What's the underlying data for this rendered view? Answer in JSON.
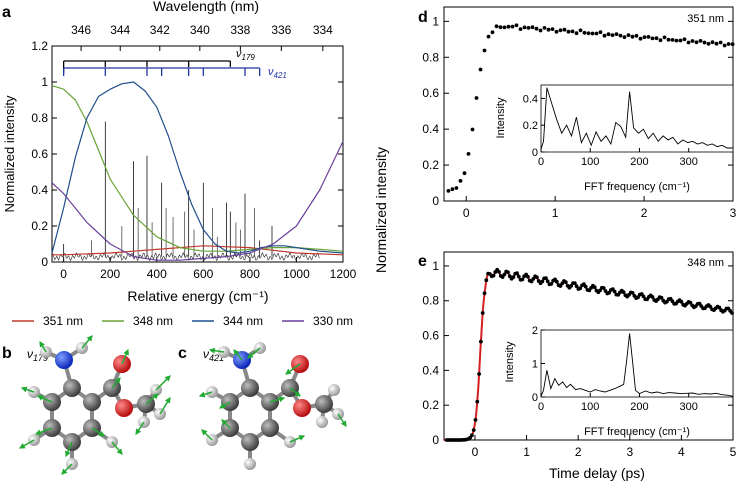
{
  "panels": {
    "a": {
      "letter": "a",
      "top_axis_label": "Wavelength (nm)",
      "top_ticks": [
        "346",
        "344",
        "342",
        "340",
        "338",
        "336",
        "334"
      ],
      "y_label": "Normalized intensity",
      "x_label": "Relative energy (cm⁻¹)",
      "progression_179": "ν",
      "progression_179_sub": "179",
      "progression_421": "ν",
      "progression_421_sub": "421"
    },
    "b": {
      "letter": "b",
      "mode": "ν",
      "mode_sub": "179"
    },
    "c": {
      "letter": "c",
      "mode": "ν",
      "mode_sub": "421"
    },
    "d": {
      "letter": "d",
      "wavelength": "351 nm"
    },
    "e": {
      "letter": "e",
      "wavelength": "348 nm"
    },
    "de_shared": {
      "y_label": "Normalized intensity",
      "x_label": "Time delay (ps)",
      "inset_y_label": "Intensity",
      "inset_x_label": "FFT frequency (cm⁻¹)"
    }
  },
  "legend": [
    {
      "label": "351 nm",
      "color": "#c0392b"
    },
    {
      "label": "348 nm",
      "color": "#6aa336"
    },
    {
      "label": "344 nm",
      "color": "#1f4e8c"
    },
    {
      "label": "330 nm",
      "color": "#6b3f9a"
    }
  ],
  "chart_data": [
    {
      "id": "a",
      "type": "line",
      "title": "",
      "xlabel": "Relative energy (cm⁻¹)",
      "ylabel": "Normalized intensity",
      "xlim": [
        -50,
        1200
      ],
      "ylim": [
        0,
        1.2
      ],
      "xticks": [
        0,
        200,
        400,
        600,
        800,
        1000,
        1200
      ],
      "yticks": [
        0,
        0.2,
        0.4,
        0.6,
        0.8,
        1,
        1.2
      ],
      "top_axis": {
        "label": "Wavelength (nm)",
        "ticks_nm": [
          346,
          344,
          342,
          340,
          338,
          336,
          334
        ],
        "ref_nm": 346.9
      },
      "series": [
        {
          "name": "351 nm",
          "color": "#c0392b",
          "x": [
            -50,
            0,
            200,
            400,
            600,
            800,
            1000,
            1200
          ],
          "y": [
            0.04,
            0.04,
            0.05,
            0.07,
            0.09,
            0.08,
            0.05,
            0.04
          ]
        },
        {
          "name": "348 nm",
          "color": "#6aa336",
          "x": [
            -50,
            0,
            50,
            100,
            150,
            200,
            300,
            400,
            500,
            600,
            700,
            800,
            900,
            1000,
            1100,
            1200
          ],
          "y": [
            0.98,
            0.96,
            0.9,
            0.78,
            0.62,
            0.46,
            0.26,
            0.14,
            0.08,
            0.06,
            0.06,
            0.07,
            0.08,
            0.08,
            0.07,
            0.06
          ]
        },
        {
          "name": "344 nm",
          "color": "#1f4e8c",
          "x": [
            -50,
            0,
            50,
            100,
            150,
            200,
            250,
            300,
            350,
            400,
            450,
            500,
            550,
            600,
            650,
            700,
            750,
            800,
            850,
            900,
            950,
            1000,
            1100,
            1200
          ],
          "y": [
            0.05,
            0.3,
            0.58,
            0.8,
            0.92,
            0.96,
            0.99,
            1.0,
            0.95,
            0.86,
            0.7,
            0.5,
            0.32,
            0.18,
            0.1,
            0.06,
            0.05,
            0.06,
            0.08,
            0.09,
            0.09,
            0.08,
            0.06,
            0.05
          ]
        },
        {
          "name": "330 nm",
          "color": "#6b3f9a",
          "x": [
            -50,
            0,
            100,
            200,
            300,
            400,
            500,
            600,
            700,
            800,
            900,
            1000,
            1100,
            1200
          ],
          "y": [
            0.44,
            0.38,
            0.22,
            0.1,
            0.03,
            0.01,
            0.01,
            0.02,
            0.03,
            0.05,
            0.1,
            0.2,
            0.4,
            0.67
          ]
        }
      ],
      "stick_spectrum": {
        "color": "#000000",
        "x": [
          0,
          179,
          300,
          358,
          421,
          537,
          600,
          700,
          716,
          779,
          842,
          895
        ],
        "y": [
          0.1,
          0.78,
          0.56,
          0.59,
          0.44,
          0.4,
          0.44,
          0.33,
          0.28,
          0.38,
          0.12,
          0.2
        ]
      },
      "progressions": [
        {
          "name": "v179",
          "color": "#000000",
          "positions": [
            0,
            179,
            358,
            537,
            716
          ]
        },
        {
          "name": "v421",
          "color": "#2233aa",
          "positions": [
            0,
            421,
            842,
            179,
            358,
            537,
            600,
            779
          ]
        }
      ]
    },
    {
      "id": "d",
      "type": "scatter",
      "xlabel": "",
      "ylabel": "Normalized intensity",
      "xlim": [
        -0.25,
        3.0
      ],
      "ylim": [
        0,
        1.08
      ],
      "xticks": [
        0,
        1,
        2,
        3
      ],
      "yticks": [
        0,
        0.2,
        0.4,
        0.6,
        0.8,
        1
      ],
      "rise": {
        "t0": 0.0,
        "width": 0.06,
        "baseline": 0.05,
        "plateau": 0.98
      },
      "decay": {
        "start": 0.3,
        "end": 3.0,
        "y_start": 0.98,
        "y_end": 0.87,
        "osc_amp": 0.006,
        "osc_period_ps": 0.19
      },
      "inset": {
        "type": "line",
        "xlabel": "FFT frequency (cm⁻¹)",
        "ylabel": "Intensity",
        "xlim": [
          0,
          390
        ],
        "ylim": [
          0,
          0.5
        ],
        "xticks": [
          0,
          100,
          200,
          300
        ],
        "yticks": [
          0,
          0.2,
          0.4
        ],
        "x": [
          0,
          5,
          12,
          22,
          32,
          42,
          52,
          62,
          72,
          82,
          92,
          102,
          112,
          122,
          132,
          142,
          152,
          162,
          172,
          180,
          188,
          198,
          208,
          218,
          228,
          238,
          248,
          258,
          268,
          278,
          288,
          298,
          308,
          318,
          328,
          338,
          348,
          358,
          368,
          378,
          390
        ],
        "y": [
          0.02,
          0.08,
          0.48,
          0.36,
          0.24,
          0.14,
          0.2,
          0.12,
          0.26,
          0.07,
          0.14,
          0.05,
          0.15,
          0.08,
          0.12,
          0.06,
          0.22,
          0.19,
          0.11,
          0.45,
          0.18,
          0.14,
          0.17,
          0.1,
          0.14,
          0.08,
          0.12,
          0.09,
          0.11,
          0.06,
          0.09,
          0.07,
          0.08,
          0.06,
          0.07,
          0.05,
          0.06,
          0.04,
          0.05,
          0.03,
          0.03
        ]
      },
      "annotation": "351 nm"
    },
    {
      "id": "e",
      "type": "scatter",
      "xlabel": "Time delay (ps)",
      "ylabel": "Normalized intensity",
      "xlim": [
        -0.6,
        5.0
      ],
      "ylim": [
        0,
        1.08
      ],
      "xticks": [
        0,
        1,
        2,
        3,
        4,
        5
      ],
      "yticks": [
        0,
        0.2,
        0.4,
        0.6,
        0.8,
        1
      ],
      "rise": {
        "t0": 0.0,
        "width": 0.045,
        "baseline": 0.0,
        "plateau": 0.97
      },
      "decay": {
        "start": 0.2,
        "end": 5.0,
        "y_start": 0.97,
        "y_end": 0.74,
        "osc_amp": 0.02,
        "osc_period_ps": 0.186
      },
      "fit_color": "#d42020",
      "inset": {
        "type": "line",
        "xlabel": "FFT frequency (cm⁻¹)",
        "ylabel": "Intensity",
        "xlim": [
          0,
          390
        ],
        "ylim": [
          0,
          2
        ],
        "xticks": [
          0,
          100,
          200,
          300
        ],
        "yticks": [
          0,
          1,
          2
        ],
        "x": [
          0,
          5,
          12,
          20,
          28,
          36,
          44,
          52,
          60,
          70,
          80,
          90,
          100,
          110,
          120,
          130,
          140,
          150,
          160,
          168,
          174,
          180,
          186,
          192,
          200,
          212,
          224,
          236,
          248,
          260,
          272,
          284,
          296,
          308,
          320,
          332,
          344,
          356,
          368,
          380,
          390
        ],
        "y": [
          0.02,
          0.2,
          0.8,
          0.25,
          0.55,
          0.35,
          0.45,
          0.28,
          0.38,
          0.22,
          0.25,
          0.2,
          0.15,
          0.22,
          0.18,
          0.15,
          0.2,
          0.25,
          0.32,
          0.38,
          1.1,
          1.9,
          1.05,
          0.2,
          0.1,
          0.18,
          0.12,
          0.15,
          0.1,
          0.13,
          0.12,
          0.1,
          0.11,
          0.12,
          0.08,
          0.1,
          0.09,
          0.11,
          0.07,
          0.05,
          0.02
        ]
      },
      "annotation": "348 nm"
    }
  ]
}
